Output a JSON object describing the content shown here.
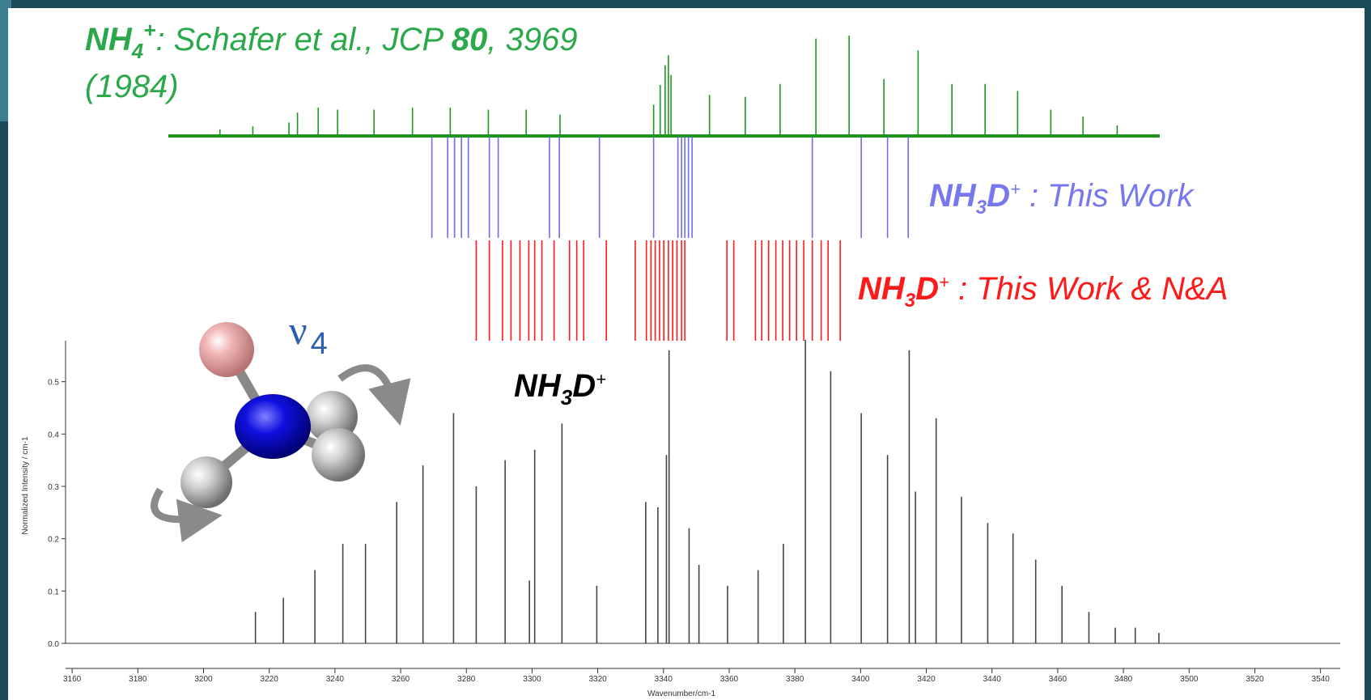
{
  "chart_data": {
    "type": "stick",
    "x_label": "Wavenumber/cm-1",
    "y_label": "Normalized Intensity / cm-1",
    "xlim": [
      3158,
      3546
    ],
    "xticks": [
      3160,
      3180,
      3200,
      3220,
      3240,
      3260,
      3280,
      3300,
      3320,
      3340,
      3360,
      3380,
      3400,
      3420,
      3440,
      3460,
      3480,
      3500,
      3520,
      3540
    ],
    "ylim": [
      0,
      0.6
    ],
    "yticks": [
      {
        "value": 0,
        "label": "0.0"
      },
      0.1,
      0.2,
      0.3,
      0.4,
      0.5
    ],
    "series": [
      {
        "label": [
          "NH",
          "3",
          "D",
          "+"
        ],
        "color": "#444444",
        "x": [
          3215.8,
          3224.3,
          3233.9,
          3242.4,
          3249.3,
          3258.8,
          3266.8,
          3276.1,
          3283.0,
          3291.8,
          3299.2,
          3300.8,
          3309.1,
          3319.7,
          3334.6,
          3338.3,
          3340.9,
          3341.7,
          3347.8,
          3350.8,
          3359.5,
          3368.8,
          3376.5,
          3383.2,
          3390.9,
          3400.2,
          3408.2,
          3414.8,
          3416.7,
          3423.0,
          3430.7,
          3438.7,
          3446.4,
          3453.3,
          3461.3,
          3469.5,
          3477.5,
          3483.6,
          3490.8
        ],
        "values": [
          0.06,
          0.087,
          0.14,
          0.19,
          0.19,
          0.27,
          0.34,
          0.44,
          0.3,
          0.35,
          0.12,
          0.37,
          0.42,
          0.11,
          0.27,
          0.26,
          0.36,
          0.56,
          0.22,
          0.15,
          0.11,
          0.14,
          0.19,
          0.58,
          0.52,
          0.44,
          0.36,
          0.56,
          0.29,
          0.43,
          0.28,
          0.23,
          0.21,
          0.16,
          0.11,
          0.06,
          0.03,
          0.03,
          0.02
        ]
      }
    ],
    "reference_sets": [
      {
        "label": [
          "NH",
          "4",
          "+",
          ": Schafer et al., JCP ",
          "80",
          ", 3969",
          "(1984)"
        ],
        "color": "#1e961e",
        "x": [
          3205,
          3215,
          3226,
          3228.6,
          3234.9,
          3240.8,
          3251.9,
          3263.6,
          3275.1,
          3286.7,
          3298.2,
          3308.5,
          3337.0,
          3339.0,
          3340.5,
          3341.5,
          3342.3,
          3354.0,
          3364.9,
          3375.5,
          3386.4,
          3396.5,
          3407.1,
          3417.5,
          3427.8,
          3437.9,
          3447.8,
          3457.9,
          3467.7,
          3478.1
        ],
        "values": [
          0.05,
          0.08,
          0.12,
          0.22,
          0.27,
          0.25,
          0.25,
          0.27,
          0.27,
          0.25,
          0.25,
          0.2,
          0.3,
          0.5,
          0.7,
          0.8,
          0.6,
          0.4,
          0.38,
          0.51,
          0.97,
          1.0,
          0.56,
          0.85,
          0.51,
          0.51,
          0.44,
          0.25,
          0.18,
          0.09
        ]
      },
      {
        "label": [
          "NH",
          "3",
          "D",
          "+",
          " : This Work"
        ],
        "color": "#6c6cf0",
        "x": [
          3269.5,
          3274.3,
          3276.4,
          3278.5,
          3280.6,
          3287.0,
          3289.7,
          3305.3,
          3308.3,
          3320.5,
          3337.0,
          3344.4,
          3345.5,
          3346.5,
          3347.6,
          3348.7,
          3385.3,
          3400.2,
          3408.2,
          3414.5
        ]
      },
      {
        "label": [
          "NH",
          "3",
          "D",
          "+",
          " : This Work & N&A"
        ],
        "color": "#ff1a1a",
        "x": [
          3283.0,
          3287.0,
          3291.0,
          3293.6,
          3296.3,
          3299.0,
          3300.8,
          3303.0,
          3306.7,
          3311.4,
          3313.6,
          3315.7,
          3322.6,
          3331.4,
          3334.8,
          3336.2,
          3337.5,
          3338.8,
          3340.1,
          3341.5,
          3342.8,
          3344.1,
          3345.5,
          3346.5,
          3359.3,
          3361.4,
          3368.0,
          3369.9,
          3372.0,
          3374.2,
          3376.3,
          3378.4,
          3380.5,
          3382.7,
          3385.3,
          3388.0,
          3390.1,
          3393.8
        ]
      }
    ],
    "annotation": [
      "ν",
      "4"
    ]
  }
}
